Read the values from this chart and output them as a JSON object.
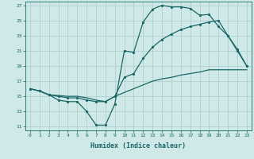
{
  "title": "",
  "xlabel": "Humidex (Indice chaleur)",
  "xlim": [
    -0.5,
    23.5
  ],
  "ylim": [
    10.5,
    27.5
  ],
  "xticks": [
    0,
    1,
    2,
    3,
    4,
    5,
    6,
    7,
    8,
    9,
    10,
    11,
    12,
    13,
    14,
    15,
    16,
    17,
    18,
    19,
    20,
    21,
    22,
    23
  ],
  "yticks": [
    11,
    13,
    15,
    17,
    19,
    21,
    23,
    25,
    27
  ],
  "background_color": "#cfe8e8",
  "grid_color": "#b0d0d0",
  "line_color": "#1a6666",
  "line1_x": [
    0,
    1,
    2,
    3,
    4,
    5,
    6,
    7,
    8,
    9,
    10,
    11,
    12,
    13,
    14,
    15,
    16,
    17,
    18,
    19,
    20,
    21,
    22,
    23
  ],
  "line1_y": [
    16.0,
    15.7,
    15.2,
    14.5,
    14.3,
    14.3,
    13.0,
    11.2,
    11.2,
    14.0,
    21.0,
    20.8,
    24.8,
    26.5,
    27.0,
    26.8,
    26.8,
    26.6,
    25.7,
    25.8,
    24.2,
    23.0,
    21.2,
    19.0
  ],
  "line2_x": [
    0,
    1,
    2,
    3,
    4,
    5,
    6,
    7,
    8,
    9,
    10,
    11,
    12,
    13,
    14,
    15,
    16,
    17,
    18,
    19,
    20,
    21,
    22,
    23
  ],
  "line2_y": [
    16.0,
    15.7,
    15.2,
    15.0,
    14.8,
    14.8,
    14.5,
    14.3,
    14.3,
    15.0,
    17.5,
    18.0,
    20.0,
    21.5,
    22.5,
    23.2,
    23.8,
    24.2,
    24.5,
    24.8,
    25.0,
    23.0,
    21.0,
    19.0
  ],
  "line3_x": [
    0,
    1,
    2,
    3,
    4,
    5,
    6,
    7,
    8,
    9,
    10,
    11,
    12,
    13,
    14,
    15,
    16,
    17,
    18,
    19,
    20,
    21,
    22,
    23
  ],
  "line3_y": [
    16.0,
    15.7,
    15.2,
    15.1,
    15.0,
    15.0,
    14.8,
    14.5,
    14.3,
    15.0,
    15.5,
    16.0,
    16.5,
    17.0,
    17.3,
    17.5,
    17.8,
    18.0,
    18.2,
    18.5,
    18.5,
    18.5,
    18.5,
    18.5
  ]
}
